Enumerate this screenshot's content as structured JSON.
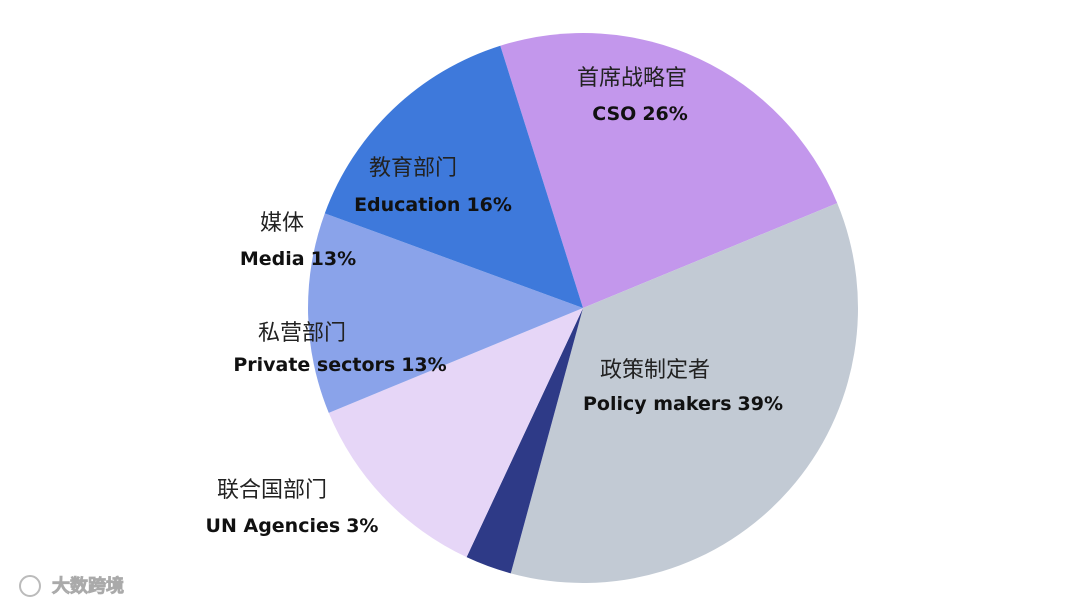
{
  "chart_data": {
    "type": "pie",
    "categories": [
      "CSO",
      "Policy makers",
      "UN Agencies",
      "Private sectors",
      "Media",
      "Education"
    ],
    "labels_zh": [
      "首席战略官",
      "政策制定者",
      "联合国部门",
      "私营部门",
      "媒体",
      "教育部门"
    ],
    "values": [
      26,
      39,
      3,
      13,
      13,
      16
    ],
    "value_labels": [
      "26%",
      "39%",
      "3%",
      "13%",
      "13%",
      "16%"
    ],
    "colors": [
      "#c397ec",
      "#c2cad4",
      "#2e3a87",
      "#e6d6f7",
      "#8aa3ea",
      "#3e79db"
    ]
  },
  "watermark": "大数跨境"
}
